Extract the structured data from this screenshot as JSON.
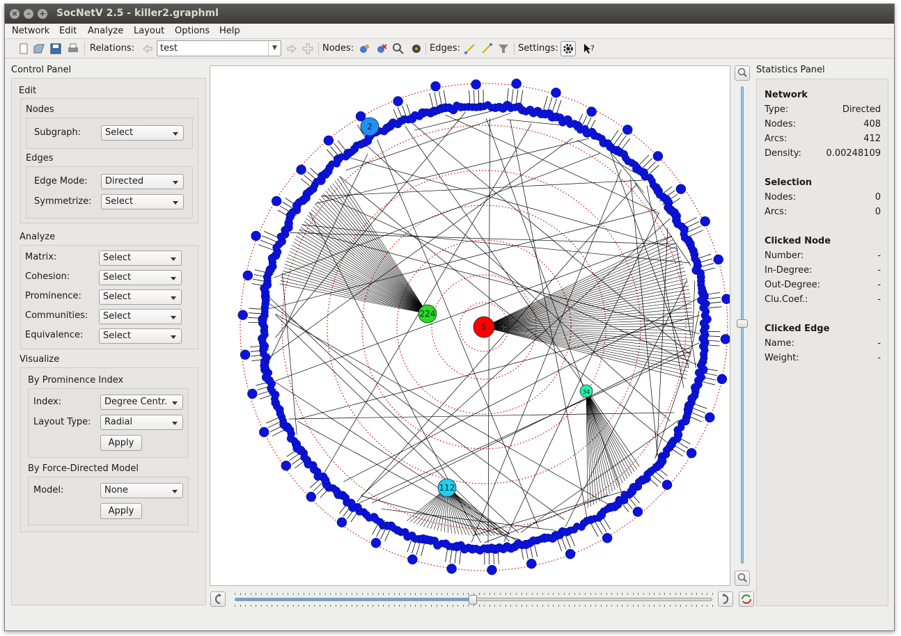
{
  "window": {
    "title": "SocNetV 2.5 - killer2.graphml",
    "close_glyph": "×",
    "min_glyph": "–",
    "max_glyph": "+"
  },
  "menubar": [
    "Network",
    "Edit",
    "Analyze",
    "Layout",
    "Options",
    "Help"
  ],
  "toolbar": {
    "relations_label": "Relations:",
    "relation_value": "test",
    "nodes_label": "Nodes:",
    "edges_label": "Edges:",
    "settings_label": "Settings:"
  },
  "control_panel": {
    "title": "Control Panel",
    "edit": {
      "title": "Edit",
      "nodes_title": "Nodes",
      "subgraph_label": "Subgraph:",
      "subgraph_value": "Select",
      "edges_title": "Edges",
      "edge_mode_label": "Edge Mode:",
      "edge_mode_value": "Directed",
      "symmetrize_label": "Symmetrize:",
      "symmetrize_value": "Select"
    },
    "analyze": {
      "title": "Analyze",
      "rows": [
        {
          "label": "Matrix:",
          "value": "Select"
        },
        {
          "label": "Cohesion:",
          "value": "Select"
        },
        {
          "label": "Prominence:",
          "value": "Select"
        },
        {
          "label": "Communities:",
          "value": "Select"
        },
        {
          "label": "Equivalence:",
          "value": "Select"
        }
      ]
    },
    "visualize": {
      "title": "Visualize",
      "prominence_title": "By Prominence Index",
      "index_label": "Index:",
      "index_value": "Degree Centr.",
      "layout_type_label": "Layout Type:",
      "layout_type_value": "Radial",
      "apply1": "Apply",
      "force_title": "By Force-Directed Model",
      "model_label": "Model:",
      "model_value": "None",
      "apply2": "Apply"
    }
  },
  "graph": {
    "labeled_nodes": [
      {
        "label": "5",
        "color": "#ff0000"
      },
      {
        "label": "224",
        "color": "#22dd22"
      },
      {
        "label": "112",
        "color": "#1ad1f0"
      },
      {
        "label": "34",
        "color": "#22eeaa"
      },
      {
        "label": "2",
        "color": "#1e90ff"
      }
    ],
    "node_color": "#0a14d8",
    "ring_color": "#cc0000"
  },
  "statistics": {
    "title": "Statistics Panel",
    "network_title": "Network",
    "network": [
      {
        "k": "Type:",
        "v": "Directed"
      },
      {
        "k": "Nodes:",
        "v": "408"
      },
      {
        "k": "Arcs:",
        "v": "412"
      },
      {
        "k": "Density:",
        "v": "0.00248109"
      }
    ],
    "selection_title": "Selection",
    "selection": [
      {
        "k": "Nodes:",
        "v": "0"
      },
      {
        "k": "Arcs:",
        "v": "0"
      }
    ],
    "clicked_node_title": "Clicked Node",
    "clicked_node": [
      {
        "k": "Number:",
        "v": "-"
      },
      {
        "k": "In-Degree:",
        "v": "-"
      },
      {
        "k": "Out-Degree:",
        "v": "-"
      },
      {
        "k": "Clu.Coef.:",
        "v": "-"
      }
    ],
    "clicked_edge_title": "Clicked Edge",
    "clicked_edge": [
      {
        "k": "Name:",
        "v": "-"
      },
      {
        "k": "Weight:",
        "v": "-"
      }
    ]
  }
}
